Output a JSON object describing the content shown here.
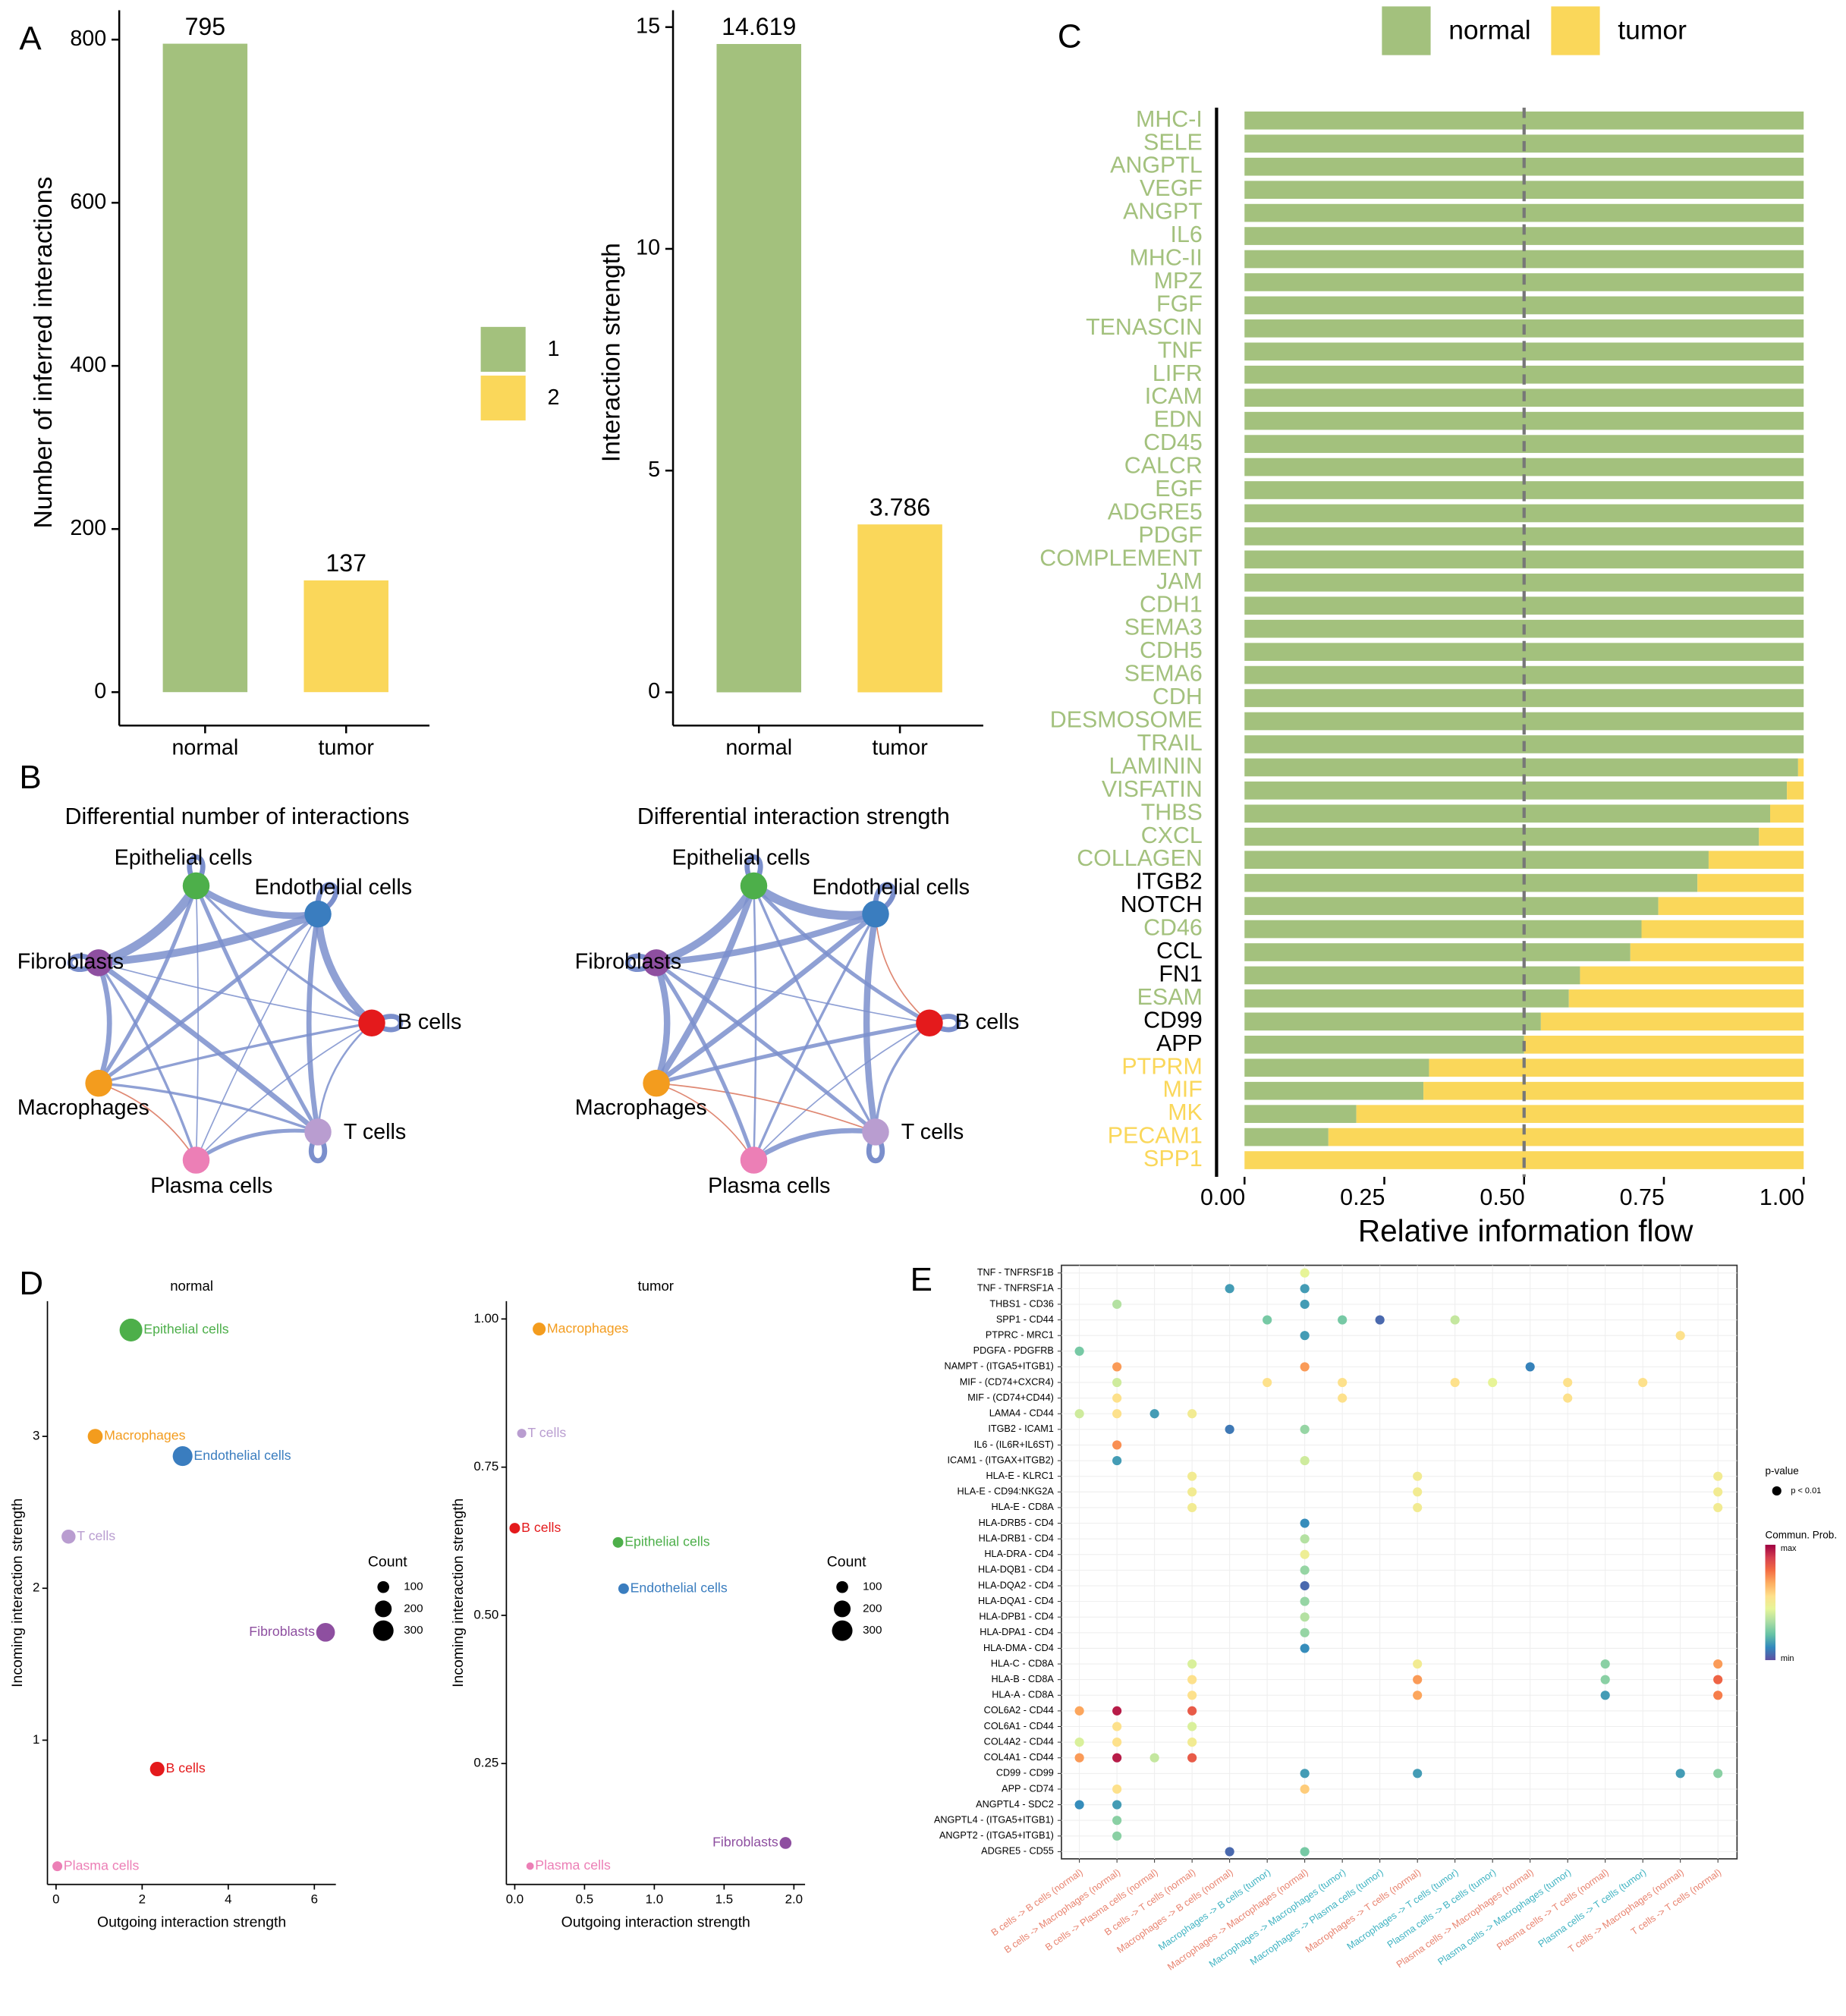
{
  "panel_labels": [
    "A",
    "B",
    "C",
    "D",
    "E"
  ],
  "networks": [
    {
      "title": "Differential number of interactions",
      "nodes": [
        {
          "label": "Epithelial cells",
          "color": "#4daf4a"
        },
        {
          "label": "Endothelial cells",
          "color": "#3a7dbf"
        },
        {
          "label": "B cells",
          "color": "#e41a1c"
        },
        {
          "label": "T cells",
          "color": "#b99dd0"
        },
        {
          "label": "Plasma cells",
          "color": "#ec7fb6"
        },
        {
          "label": "Macrophages",
          "color": "#f39c1e"
        },
        {
          "label": "Fibroblasts",
          "color": "#8e4fa0"
        }
      ]
    },
    {
      "title": "Differential interaction strength",
      "nodes": [
        {
          "label": "Epithelial cells",
          "color": "#4daf4a"
        },
        {
          "label": "Endothelial cells",
          "color": "#3a7dbf"
        },
        {
          "label": "B cells",
          "color": "#e41a1c"
        },
        {
          "label": "T cells",
          "color": "#b99dd0"
        },
        {
          "label": "Plasma cells",
          "color": "#ec7fb6"
        },
        {
          "label": "Macrophages",
          "color": "#f39c1e"
        },
        {
          "label": "Fibroblasts",
          "color": "#8e4fa0"
        }
      ]
    }
  ],
  "chart_data": [
    {
      "type": "bar",
      "ylabel": "Number of inferred interactions",
      "categories": [
        "normal",
        "tumor"
      ],
      "values": [
        795,
        137
      ],
      "colors": [
        "#a3c17d",
        "#fad75a"
      ],
      "legend": [
        "1",
        "2"
      ],
      "ylim": [
        -41,
        836
      ],
      "yticks": [
        0,
        200,
        400,
        600,
        800
      ]
    },
    {
      "type": "bar",
      "ylabel": "Interaction strength",
      "categories": [
        "normal",
        "tumor"
      ],
      "values": [
        14.619,
        3.786
      ],
      "colors": [
        "#a3c17d",
        "#fad75a"
      ],
      "ylim": [
        -0.75,
        15.38
      ],
      "yticks": [
        0,
        5,
        10,
        15
      ]
    },
    {
      "type": "hbar_stacked",
      "xlabel": "Relative information flow",
      "categories": [
        "MHC-I",
        "SELE",
        "ANGPTL",
        "VEGF",
        "ANGPT",
        "IL6",
        "MHC-II",
        "MPZ",
        "FGF",
        "TENASCIN",
        "TNF",
        "LIFR",
        "ICAM",
        "EDN",
        "CD45",
        "CALCR",
        "EGF",
        "ADGRE5",
        "PDGF",
        "COMPLEMENT",
        "JAM",
        "CDH1",
        "SEMA3",
        "CDH5",
        "SEMA6",
        "CDH",
        "DESMOSOME",
        "TRAIL",
        "LAMININ",
        "VISFATIN",
        "THBS",
        "CXCL",
        "COLLAGEN",
        "ITGB2",
        "NOTCH",
        "CD46",
        "CCL",
        "FN1",
        "ESAM",
        "CD99",
        "APP",
        "PTPRM",
        "MIF",
        "MK",
        "PECAM1",
        "SPP1"
      ],
      "label_colors": [
        "#a3c17d",
        "#a3c17d",
        "#a3c17d",
        "#a3c17d",
        "#a3c17d",
        "#a3c17d",
        "#a3c17d",
        "#a3c17d",
        "#a3c17d",
        "#a3c17d",
        "#a3c17d",
        "#a3c17d",
        "#a3c17d",
        "#a3c17d",
        "#a3c17d",
        "#a3c17d",
        "#a3c17d",
        "#a3c17d",
        "#a3c17d",
        "#a3c17d",
        "#a3c17d",
        "#a3c17d",
        "#a3c17d",
        "#a3c17d",
        "#a3c17d",
        "#a3c17d",
        "#a3c17d",
        "#a3c17d",
        "#a3c17d",
        "#a3c17d",
        "#a3c17d",
        "#a3c17d",
        "#a3c17d",
        "#000000",
        "#000000",
        "#a3c17d",
        "#000000",
        "#000000",
        "#a3c17d",
        "#000000",
        "#000000",
        "#fad75a",
        "#fad75a",
        "#fad75a",
        "#fad75a",
        "#fad75a"
      ],
      "series": [
        {
          "name": "normal",
          "color": "#a3c17d",
          "values": [
            1,
            1,
            1,
            1,
            1,
            1,
            1,
            1,
            1,
            1,
            1,
            1,
            1,
            1,
            1,
            1,
            1,
            1,
            1,
            1,
            1,
            1,
            1,
            1,
            1,
            1,
            1,
            1,
            0.99,
            0.97,
            0.94,
            0.92,
            0.83,
            0.81,
            0.74,
            0.71,
            0.69,
            0.6,
            0.58,
            0.53,
            0.5,
            0.33,
            0.32,
            0.2,
            0.15,
            0
          ]
        },
        {
          "name": "tumor",
          "color": "#fad75a",
          "values": [
            0,
            0,
            0,
            0,
            0,
            0,
            0,
            0,
            0,
            0,
            0,
            0,
            0,
            0,
            0,
            0,
            0,
            0,
            0,
            0,
            0,
            0,
            0,
            0,
            0,
            0,
            0,
            0,
            0.01,
            0.03,
            0.06,
            0.08,
            0.17,
            0.19,
            0.26,
            0.29,
            0.31,
            0.4,
            0.42,
            0.47,
            0.5,
            0.67,
            0.68,
            0.8,
            0.85,
            1
          ]
        }
      ],
      "vline": 0.5,
      "xlim": [
        -0.05,
        1
      ],
      "xticks": [
        {
          "value": 0,
          "label": "0.00"
        },
        0.25,
        {
          "value": 0.5,
          "label": "0.50"
        },
        0.75,
        {
          "value": 1,
          "label": "1.00"
        }
      ]
    },
    {
      "type": "scatter",
      "title": "normal",
      "xlabel": "Outgoing interaction strength",
      "ylabel": "Incoming interaction strength",
      "labels": [
        "Epithelial cells",
        "Macrophages",
        "Endothelial cells",
        "T cells",
        "Fibroblasts",
        "B cells",
        "Plasma cells"
      ],
      "colors": [
        "#4daf4a",
        "#f39c1e",
        "#3a7dbf",
        "#b99dd0",
        "#8e4fa0",
        "#e41a1c",
        "#ec7fb6"
      ],
      "x": [
        1.74,
        0.91,
        2.94,
        0.29,
        6.26,
        2.35,
        0.03
      ],
      "y": [
        3.7,
        3.0,
        2.87,
        2.34,
        1.71,
        0.81,
        0.17
      ],
      "sizes": [
        370,
        160,
        280,
        140,
        250,
        150,
        70
      ],
      "size_title": "Count",
      "size_legend": [
        100,
        200,
        300
      ],
      "xlim": [
        -0.2,
        6.5
      ],
      "ylim": [
        0.05,
        3.89
      ],
      "xticks": [
        0,
        2,
        4,
        6
      ],
      "yticks": [
        1,
        2,
        3
      ]
    },
    {
      "type": "scatter",
      "title": "tumor",
      "xlabel": "Outgoing interaction strength",
      "ylabel": "Incoming interaction strength",
      "labels": [
        "Macrophages",
        "T cells",
        "B cells",
        "Epithelial cells",
        "Endothelial cells",
        "Fibroblasts",
        "Plasma cells"
      ],
      "colors": [
        "#f39c1e",
        "#b99dd0",
        "#e41a1c",
        "#4daf4a",
        "#3a7dbf",
        "#8e4fa0",
        "#ec7fb6"
      ],
      "x": [
        0.175,
        0.05,
        0,
        0.74,
        0.78,
        1.94,
        0.11
      ],
      "y": [
        0.983,
        0.807,
        0.647,
        0.623,
        0.545,
        0.116,
        0.077
      ],
      "sizes": [
        120,
        60,
        80,
        80,
        80,
        100,
        40
      ],
      "size_title": "Count",
      "size_legend": [
        100,
        200,
        300
      ],
      "xlim": [
        -0.06,
        2.08
      ],
      "ylim": [
        0.046,
        1.03
      ],
      "xticks": [
        {
          "value": 0,
          "label": "0.0"
        },
        0.5,
        {
          "value": 1,
          "label": "1.0"
        },
        1.5,
        {
          "value": 2,
          "label": "2.0"
        }
      ],
      "yticks": [
        0.25,
        {
          "value": 0.5,
          "label": "0.50"
        },
        0.75,
        {
          "value": 1,
          "label": "1.00"
        }
      ]
    },
    {
      "type": "dot",
      "categories": [
        "B cells -> B cells (normal)",
        "B cells -> Macrophages (normal)",
        "B cells -> Plasma cells (normal)",
        "B cells -> T cells (normal)",
        "Macrophages -> B cells (normal)",
        "Macrophages -> B cells (tumor)",
        "Macrophages -> Macrophages (normal)",
        "Macrophages -> Macrophages (tumor)",
        "Macrophages -> Plasma cells (tumor)",
        "Macrophages -> T cells (normal)",
        "Macrophages -> T cells (tumor)",
        "Plasma cells -> B cells (tumor)",
        "Plasma cells -> Macrophages (normal)",
        "Plasma cells -> Macrophages (tumor)",
        "Plasma cells -> T cells (normal)",
        "Plasma cells -> T cells (tumor)",
        "T cells -> Macrophages (normal)",
        "T cells -> T cells (normal)"
      ],
      "category_colors": [
        "#e8836f",
        "#e8836f",
        "#e8836f",
        "#e8836f",
        "#e8836f",
        "#3fb3c2",
        "#e8836f",
        "#3fb3c2",
        "#3fb3c2",
        "#e8836f",
        "#3fb3c2",
        "#3fb3c2",
        "#e8836f",
        "#3fb3c2",
        "#e8836f",
        "#3fb3c2",
        "#e8836f",
        "#e8836f"
      ],
      "rows": [
        "TNF - TNFRSF1B",
        "TNF - TNFRSF1A",
        "THBS1 - CD36",
        "SPP1 - CD44",
        "PTPRC - MRC1",
        "PDGFA - PDGFRB",
        "NAMPT - (ITGA5+ITGB1)",
        "MIF - (CD74+CXCR4)",
        "MIF - (CD74+CD44)",
        "LAMA4 - CD44",
        "ITGB2 - ICAM1",
        "IL6 - (IL6R+IL6ST)",
        "ICAM1 - (ITGAX+ITGB2)",
        "HLA-E - KLRC1",
        "HLA-E - CD94:NKG2A",
        "HLA-E - CD8A",
        "HLA-DRB5 - CD4",
        "HLA-DRB1 - CD4",
        "HLA-DRA - CD4",
        "HLA-DQB1 - CD4",
        "HLA-DQA2 - CD4",
        "HLA-DQA1 - CD4",
        "HLA-DPB1 - CD4",
        "HLA-DPA1 - CD4",
        "HLA-DMA - CD4",
        "HLA-C - CD8A",
        "HLA-B - CD8A",
        "HLA-A - CD8A",
        "COL6A2 - CD44",
        "COL6A1 - CD44",
        "COL4A2 - CD44",
        "COL4A1 - CD44",
        "CD99 - CD99",
        "APP - CD74",
        "ANGPTL4 - SDC2",
        "ANGPTL4 - (ITGA5+ITGB1)",
        "ANGPT2 - (ITGA5+ITGB1)",
        "ADGRE5 - CD55"
      ],
      "points": [
        [
          0,
          6,
          0.45
        ],
        [
          1,
          4,
          0.15
        ],
        [
          1,
          6,
          0.15
        ],
        [
          2,
          1,
          0.35
        ],
        [
          2,
          6,
          0.15
        ],
        [
          3,
          5,
          0.25
        ],
        [
          3,
          7,
          0.25
        ],
        [
          3,
          8,
          0.05
        ],
        [
          3,
          10,
          0.38
        ],
        [
          4,
          6,
          0.15
        ],
        [
          4,
          16,
          0.55
        ],
        [
          5,
          0,
          0.25
        ],
        [
          6,
          1,
          0.7
        ],
        [
          6,
          6,
          0.7
        ],
        [
          6,
          12,
          0.1
        ],
        [
          7,
          1,
          0.4
        ],
        [
          7,
          5,
          0.55
        ],
        [
          7,
          7,
          0.55
        ],
        [
          7,
          10,
          0.55
        ],
        [
          7,
          11,
          0.45
        ],
        [
          7,
          13,
          0.55
        ],
        [
          7,
          15,
          0.55
        ],
        [
          8,
          1,
          0.55
        ],
        [
          8,
          7,
          0.55
        ],
        [
          8,
          13,
          0.55
        ],
        [
          9,
          0,
          0.4
        ],
        [
          9,
          1,
          0.55
        ],
        [
          9,
          2,
          0.15
        ],
        [
          9,
          3,
          0.5
        ],
        [
          10,
          4,
          0.08
        ],
        [
          10,
          6,
          0.3
        ],
        [
          11,
          1,
          0.72
        ],
        [
          12,
          1,
          0.15
        ],
        [
          12,
          6,
          0.4
        ],
        [
          13,
          3,
          0.5
        ],
        [
          13,
          9,
          0.5
        ],
        [
          13,
          17,
          0.5
        ],
        [
          14,
          3,
          0.5
        ],
        [
          14,
          9,
          0.5
        ],
        [
          14,
          17,
          0.5
        ],
        [
          15,
          3,
          0.5
        ],
        [
          15,
          9,
          0.5
        ],
        [
          15,
          17,
          0.5
        ],
        [
          16,
          6,
          0.12
        ],
        [
          17,
          6,
          0.35
        ],
        [
          18,
          6,
          0.48
        ],
        [
          19,
          6,
          0.3
        ],
        [
          20,
          6,
          0.05
        ],
        [
          21,
          6,
          0.3
        ],
        [
          22,
          6,
          0.35
        ],
        [
          23,
          6,
          0.3
        ],
        [
          24,
          6,
          0.12
        ],
        [
          25,
          3,
          0.42
        ],
        [
          25,
          9,
          0.5
        ],
        [
          25,
          14,
          0.28
        ],
        [
          25,
          17,
          0.7
        ],
        [
          26,
          3,
          0.55
        ],
        [
          26,
          9,
          0.7
        ],
        [
          26,
          14,
          0.28
        ],
        [
          26,
          17,
          0.8
        ],
        [
          27,
          3,
          0.55
        ],
        [
          27,
          9,
          0.68
        ],
        [
          27,
          14,
          0.15
        ],
        [
          27,
          17,
          0.75
        ],
        [
          28,
          0,
          0.68
        ],
        [
          28,
          1,
          0.95
        ],
        [
          28,
          3,
          0.82
        ],
        [
          29,
          1,
          0.55
        ],
        [
          29,
          3,
          0.42
        ],
        [
          30,
          0,
          0.42
        ],
        [
          30,
          1,
          0.55
        ],
        [
          30,
          3,
          0.5
        ],
        [
          31,
          0,
          0.7
        ],
        [
          31,
          1,
          0.95
        ],
        [
          31,
          2,
          0.38
        ],
        [
          31,
          3,
          0.82
        ],
        [
          32,
          6,
          0.15
        ],
        [
          32,
          9,
          0.15
        ],
        [
          32,
          16,
          0.15
        ],
        [
          32,
          17,
          0.28
        ],
        [
          33,
          1,
          0.55
        ],
        [
          33,
          6,
          0.6
        ],
        [
          34,
          0,
          0.12
        ],
        [
          34,
          1,
          0.15
        ],
        [
          35,
          1,
          0.28
        ],
        [
          36,
          1,
          0.28
        ],
        [
          37,
          4,
          0.05
        ],
        [
          37,
          6,
          0.25
        ]
      ],
      "color_scale": [
        "#5e4fa2",
        "#3288bd",
        "#66c2a5",
        "#abdda4",
        "#e6f598",
        "#fee08b",
        "#fdae61",
        "#f46d43",
        "#d53e4f",
        "#9e0142"
      ],
      "legend_pvalue_title": "p-value",
      "legend_pvalue_label": "p < 0.01",
      "legend_color_title": "Commun. Prob.",
      "legend_max": "max",
      "legend_min": "min"
    }
  ]
}
